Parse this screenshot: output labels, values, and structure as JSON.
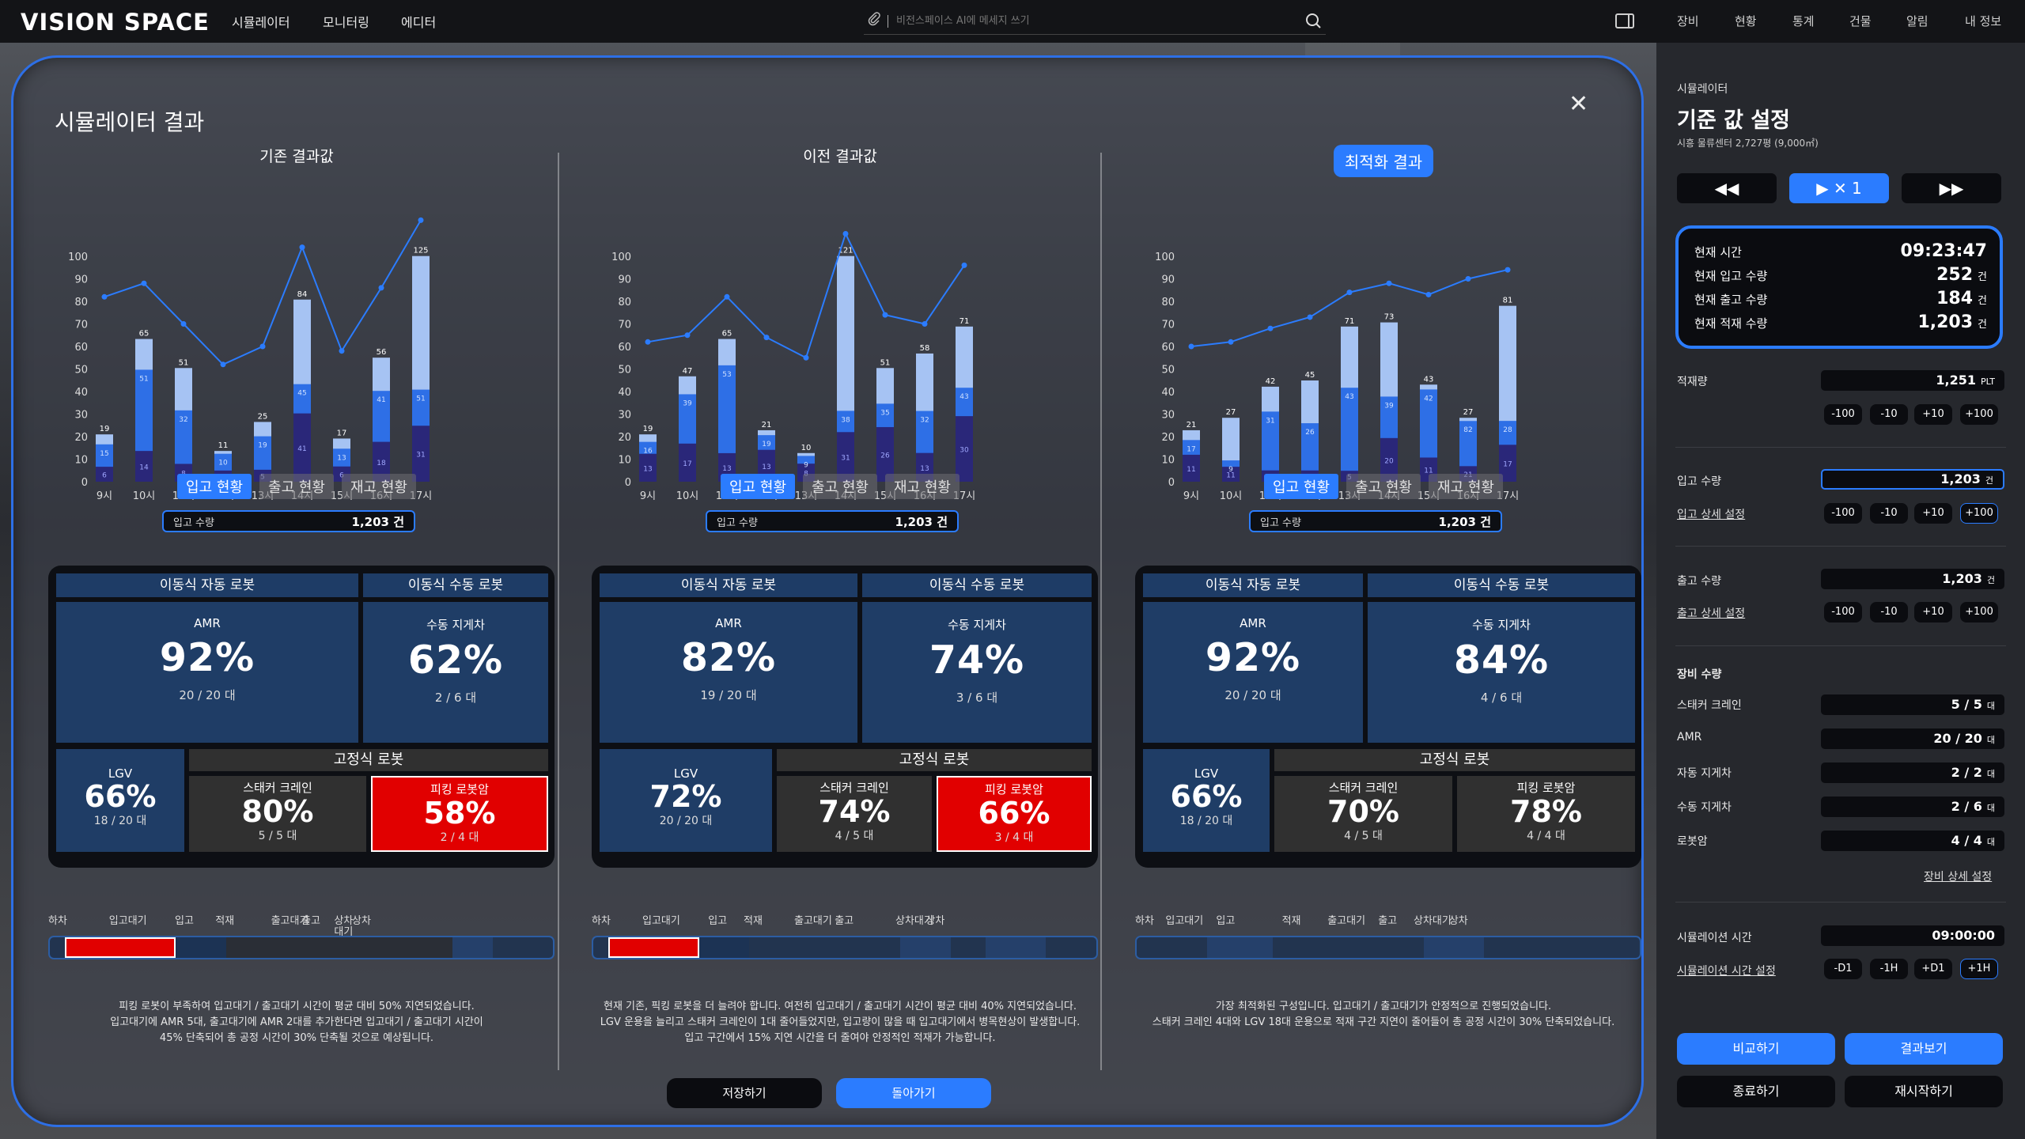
{
  "app": {
    "logo": "VISION SPACE"
  },
  "topnav": {
    "items": [
      "시뮬레이터",
      "모니터링",
      "에디터"
    ],
    "search_placeholder": "비전스페이스 AI에 메세지 쓰기",
    "right_items": [
      "장비",
      "현황",
      "통계",
      "건물",
      "알림",
      "내 정보"
    ]
  },
  "modal": {
    "title": "시뮬레이터 결과",
    "columns": [
      {
        "title": "기존 결과값",
        "tabs": [
          "입고 현황",
          "출고 현황",
          "재고 현황"
        ],
        "input_label": "입고 수량",
        "input_value": "1,203 건",
        "robots": {
          "mobile_auto": "이동식 자동 로봇",
          "mobile_manual": "이동식 수동 로봇",
          "amr": {
            "name": "AMR",
            "pct": "92%",
            "count": "20 / 20 대"
          },
          "manual_forklift": {
            "name": "수동 지게차",
            "pct": "62%",
            "count": "2 / 6 대"
          },
          "lgv": {
            "name": "LGV",
            "pct": "66%",
            "count": "18 / 20 대"
          },
          "fixed": "고정식 로봇",
          "stacker": {
            "name": "스태커 크레인",
            "pct": "80%",
            "count": "5 / 5 대"
          },
          "picking": {
            "name": "피킹 로봇암",
            "pct": "58%",
            "count": "2 / 4 대"
          }
        },
        "timeline_labels": [
          "하차",
          "입고대기",
          "입고",
          "적재",
          "출고대기",
          "출고",
          "상차 대기",
          "상차"
        ],
        "description": [
          "피킹 로봇이 부족하여 입고대기 / 출고대기 시간이 평균 대비 50% 지연되었습니다.",
          "입고대기에 AMR 5대, 출고대기에 AMR 2대를 추가한다면 입고대기 / 출고대기 시간이",
          "45% 단축되어 총 공정 시간이 30% 단축될 것으로 예상됩니다."
        ]
      },
      {
        "title": "이전 결과값",
        "tabs": [
          "입고 현황",
          "출고 현황",
          "재고 현황"
        ],
        "input_label": "입고 수량",
        "input_value": "1,203 건",
        "robots": {
          "mobile_auto": "이동식 자동 로봇",
          "mobile_manual": "이동식 수동 로봇",
          "amr": {
            "name": "AMR",
            "pct": "82%",
            "count": "19 / 20 대"
          },
          "manual_forklift": {
            "name": "수동 지게차",
            "pct": "74%",
            "count": "3 / 6 대"
          },
          "lgv": {
            "name": "LGV",
            "pct": "72%",
            "count": "20 / 20 대"
          },
          "fixed": "고정식 로봇",
          "stacker": {
            "name": "스태커 크레인",
            "pct": "74%",
            "count": "4 / 5 대"
          },
          "picking": {
            "name": "피킹 로봇암",
            "pct": "66%",
            "count": "3 / 4 대"
          }
        },
        "timeline_labels": [
          "하차",
          "입고대기",
          "입고",
          "적재",
          "출고대기",
          "출고",
          "상차대기",
          "상차"
        ],
        "description": [
          "현재 기존, 픽킹 로봇을 더 늘려야 합니다. 여전히 입고대기 / 출고대기 시간이 평균 대비 40% 지연되었습니다.",
          "LGV 운용을 늘리고 스태커 크레인이 1대 줄어들었지만, 입고량이 많을 때 입고대기에서 병목현상이 발생합니다.",
          "입고 구간에서 15% 지연 시간을 더 줄여야 안정적인 적재가 가능합니다."
        ]
      },
      {
        "title": "최적화 결과",
        "tabs": [
          "입고 현황",
          "출고 현황",
          "재고 현황"
        ],
        "input_label": "입고 수량",
        "input_value": "1,203 건",
        "robots": {
          "mobile_auto": "이동식 자동 로봇",
          "mobile_manual": "이동식 수동 로봇",
          "amr": {
            "name": "AMR",
            "pct": "92%",
            "count": "20 / 20 대"
          },
          "manual_forklift": {
            "name": "수동 지게차",
            "pct": "84%",
            "count": "4 / 6 대"
          },
          "lgv": {
            "name": "LGV",
            "pct": "66%",
            "count": "18 / 20 대"
          },
          "fixed": "고정식 로봇",
          "stacker": {
            "name": "스태커 크레인",
            "pct": "70%",
            "count": "4 / 5 대"
          },
          "picking": {
            "name": "피킹 로봇암",
            "pct": "78%",
            "count": "4 / 4 대"
          }
        },
        "timeline_labels": [
          "하차",
          "입고대기",
          "입고",
          "적재",
          "출고대기",
          "출고",
          "상차대기",
          "상차"
        ],
        "description": [
          "가장 최적화된 구성입니다. 입고대기 / 출고대기가 안정적으로 진행되었습니다.",
          "스태커 크레인 4대와 LGV 18대 운용으로 적재 구간 지연이 줄어들어 총 공정 시간이 30% 단축되었습니다."
        ]
      }
    ],
    "buttons": {
      "save": "저장하기",
      "back": "돌아가기"
    }
  },
  "chart_data": [
    {
      "type": "bar",
      "categories": [
        "9시",
        "10시",
        "11시",
        "12시",
        "13시",
        "14시",
        "15시",
        "16시",
        "17시"
      ],
      "ylim": [
        0,
        100
      ],
      "yticks": [
        0,
        10,
        20,
        30,
        40,
        50,
        60,
        70,
        80,
        90,
        100
      ],
      "totals": [
        19,
        65,
        51,
        11,
        25,
        84,
        17,
        56,
        125
      ],
      "series": [
        {
          "values": [
            15,
            51,
            32,
            10,
            19,
            45,
            13,
            41,
            51
          ]
        },
        {
          "values": [
            6,
            14,
            8,
            4,
            5,
            41,
            6,
            18,
            31
          ]
        }
      ],
      "line": [
        82,
        88,
        70,
        52,
        60,
        104,
        58,
        86,
        116
      ]
    },
    {
      "type": "bar",
      "categories": [
        "9시",
        "10시",
        "11시",
        "12시",
        "13시",
        "14시",
        "15시",
        "16시",
        "17시"
      ],
      "ylim": [
        0,
        100
      ],
      "yticks": [
        0,
        10,
        20,
        30,
        40,
        50,
        60,
        70,
        80,
        90,
        100
      ],
      "totals": [
        19,
        47,
        65,
        21,
        10,
        121,
        51,
        58,
        71
      ],
      "series": [
        {
          "values": [
            16,
            39,
            53,
            19,
            9,
            38,
            35,
            32,
            43
          ]
        },
        {
          "values": [
            13,
            17,
            13,
            13,
            8,
            31,
            26,
            13,
            30
          ]
        }
      ],
      "line": [
        62,
        65,
        82,
        64,
        55,
        110,
        74,
        70,
        96
      ]
    },
    {
      "type": "bar",
      "categories": [
        "9시",
        "10시",
        "11시",
        "12시",
        "13시",
        "14시",
        "15시",
        "16시",
        "17시"
      ],
      "ylim": [
        0,
        100
      ],
      "yticks": [
        0,
        10,
        20,
        30,
        40,
        50,
        60,
        70,
        80,
        90,
        100
      ],
      "totals": [
        21,
        27,
        42,
        45,
        71,
        73,
        43,
        27,
        81
      ],
      "series": [
        {
          "values": [
            17,
            9,
            31,
            26,
            43,
            39,
            42,
            82,
            28
          ]
        },
        {
          "values": [
            11,
            11,
            5,
            5,
            5,
            20,
            11,
            21,
            17
          ]
        }
      ],
      "line": [
        60,
        62,
        68,
        73,
        84,
        88,
        83,
        90,
        94
      ]
    }
  ],
  "right_panel": {
    "subtitle": "시뮬레이터",
    "title": "기준 값 설정",
    "desc": "시흥 물류센터 2,727평 (9,000㎡)",
    "playback": {
      "rewind": "◀◀",
      "play": "▶ ✕  1",
      "forward": "▶▶"
    },
    "status": [
      {
        "k": "현재 시간",
        "v": "09:23:47",
        "u": ""
      },
      {
        "k": "현재 입고 수량",
        "v": "252",
        "u": "건"
      },
      {
        "k": "현재 출고 수량",
        "v": "184",
        "u": "건"
      },
      {
        "k": "현재 적재 수량",
        "v": "1,203",
        "u": "건"
      }
    ],
    "load": {
      "label": "적재량",
      "value": "1,251",
      "unit": "PLT"
    },
    "steps": [
      "-100",
      "-10",
      "+10",
      "+100"
    ],
    "in_qty": {
      "label": "입고 수량",
      "value": "1,203",
      "unit": "건",
      "detail": "입고 상세 설정"
    },
    "out_qty": {
      "label": "출고 수량",
      "value": "1,203",
      "unit": "건",
      "detail": "출고 상세 설정"
    },
    "equip_title": "장비 수량",
    "equip": [
      {
        "k": "스태커 크레인",
        "v": "5 / 5",
        "u": "대"
      },
      {
        "k": "AMR",
        "v": "20 / 20",
        "u": "대"
      },
      {
        "k": "자동 지게차",
        "v": "2 / 2",
        "u": "대"
      },
      {
        "k": "수동 지게차",
        "v": "2 / 6",
        "u": "대"
      },
      {
        "k": "로봇암",
        "v": "4 / 4",
        "u": "대"
      }
    ],
    "equip_detail": "장비 상세 설정",
    "sim_time": {
      "label": "시뮬레이션 시간",
      "value": "09:00:00",
      "detail": "시뮬레이션 시간 설정"
    },
    "time_steps": [
      "-D1",
      "-1H",
      "+D1",
      "+1H"
    ],
    "buttons": {
      "compare": "비교하기",
      "result": "결과보기",
      "end": "종료하기",
      "restart": "재시작하기"
    }
  },
  "colors": {
    "accent": "#2b7cff",
    "bar_light": "#a6c3f3",
    "bar_mid": "#2e6fe6",
    "bar_dark": "#2a2779",
    "alert": "#e10000"
  }
}
